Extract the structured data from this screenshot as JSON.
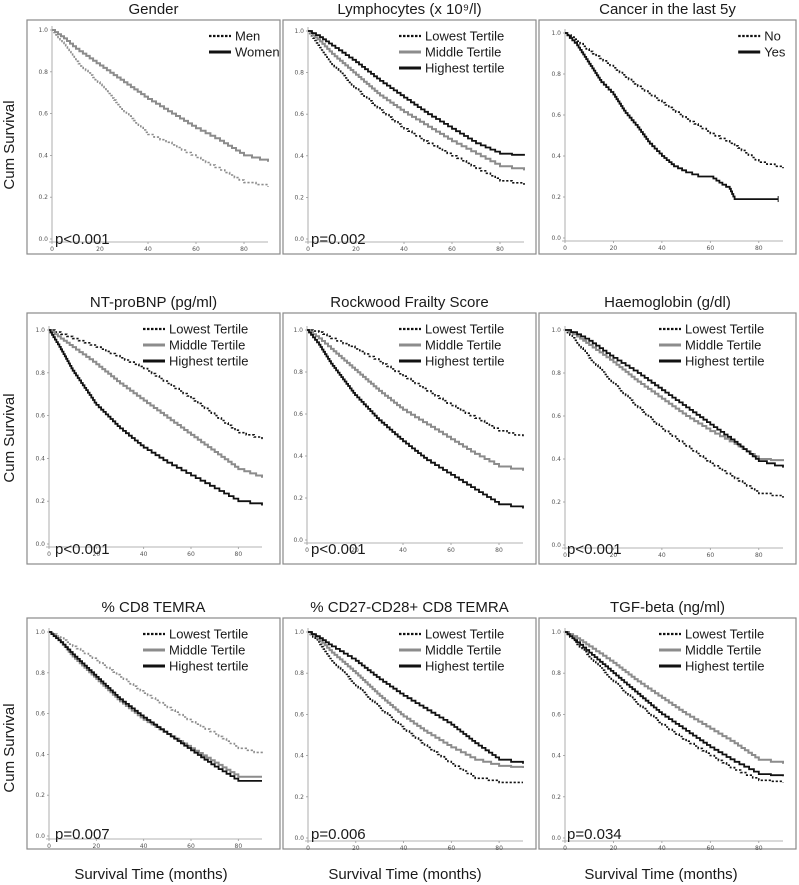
{
  "figure": {
    "y_axis_label": "Cum Survival",
    "x_axis_label": "Survival Time (months)"
  },
  "colors": {
    "black": "#111111",
    "gray": "#8c8c8c",
    "frame": "#8a8a8a"
  },
  "chart_data": [
    {
      "type": "line",
      "title": "Gender",
      "p_value": "p<0.001",
      "legend_position": "top-right",
      "xlabel": "Survival Time (months)",
      "ylabel": "Cum Survival",
      "xlim": [
        0,
        90
      ],
      "ylim": [
        0,
        1
      ],
      "x_ticks": [
        "0",
        "20",
        "40",
        "60",
        "80"
      ],
      "y_ticks": [
        "0.0",
        "0.2",
        "0.4",
        "0.6",
        "0.8",
        "1.0"
      ],
      "series": [
        {
          "name": "Men",
          "style": "dotted-gray",
          "legend_style": "dotted-black",
          "x": [
            0,
            5,
            10,
            20,
            30,
            40,
            50,
            60,
            70,
            80,
            90
          ],
          "y": [
            1.0,
            0.93,
            0.85,
            0.74,
            0.61,
            0.5,
            0.45,
            0.39,
            0.33,
            0.27,
            0.25
          ]
        },
        {
          "name": "Women",
          "style": "solid-gray",
          "legend_style": "solid-black",
          "x": [
            0,
            5,
            10,
            20,
            30,
            40,
            50,
            60,
            70,
            80,
            90
          ],
          "y": [
            1.0,
            0.96,
            0.91,
            0.83,
            0.75,
            0.67,
            0.6,
            0.53,
            0.47,
            0.4,
            0.37
          ]
        }
      ]
    },
    {
      "type": "line",
      "title": "Lymphocytes (x 10⁹/l)",
      "p_value": "p=0.002",
      "legend_position": "top-right",
      "xlabel": "Survival Time (months)",
      "ylabel": "Cum Survival",
      "xlim": [
        0,
        90
      ],
      "ylim": [
        0,
        1
      ],
      "x_ticks": [
        "0",
        "20",
        "40",
        "60",
        "80"
      ],
      "y_ticks": [
        "0.0",
        "0.2",
        "0.4",
        "0.6",
        "0.8",
        "1.0"
      ],
      "series": [
        {
          "name": "Lowest Tertile",
          "style": "dotted-black",
          "legend_style": "dotted-black",
          "x": [
            0,
            5,
            10,
            20,
            30,
            40,
            50,
            60,
            70,
            80,
            90
          ],
          "y": [
            1.0,
            0.92,
            0.84,
            0.72,
            0.62,
            0.53,
            0.46,
            0.4,
            0.34,
            0.28,
            0.26
          ]
        },
        {
          "name": "Middle Tertile",
          "style": "solid-gray",
          "legend_style": "solid-gray",
          "x": [
            0,
            5,
            10,
            20,
            30,
            40,
            50,
            60,
            70,
            80,
            90
          ],
          "y": [
            1.0,
            0.95,
            0.89,
            0.79,
            0.69,
            0.61,
            0.54,
            0.47,
            0.41,
            0.35,
            0.33
          ]
        },
        {
          "name": "Highest tertile",
          "style": "solid-black",
          "legend_style": "solid-black",
          "x": [
            0,
            5,
            10,
            20,
            30,
            40,
            50,
            60,
            70,
            80,
            90
          ],
          "y": [
            1.0,
            0.97,
            0.93,
            0.85,
            0.76,
            0.68,
            0.6,
            0.53,
            0.46,
            0.41,
            0.4
          ]
        }
      ]
    },
    {
      "type": "line",
      "title": "Cancer in the last 5y",
      "p_value": "",
      "legend_position": "top-right",
      "xlabel": "Survival Time (months)",
      "ylabel": "Cum Survival",
      "xlim": [
        0,
        90
      ],
      "ylim": [
        0,
        1
      ],
      "x_ticks": [
        "0",
        "20",
        "40",
        "60",
        "80"
      ],
      "y_ticks": [
        "0.0",
        "0.2",
        "0.4",
        "0.6",
        "0.8",
        "1.0"
      ],
      "series": [
        {
          "name": "No",
          "style": "dotted-black",
          "legend_style": "dotted-black",
          "x": [
            0,
            5,
            10,
            20,
            30,
            40,
            50,
            60,
            70,
            80,
            90
          ],
          "y": [
            1.0,
            0.96,
            0.91,
            0.83,
            0.74,
            0.66,
            0.58,
            0.51,
            0.45,
            0.37,
            0.34
          ]
        },
        {
          "name": "Yes",
          "style": "solid-black",
          "legend_style": "solid-black",
          "x": [
            0,
            5,
            10,
            15,
            20,
            25,
            30,
            35,
            40,
            45,
            50,
            55,
            60,
            65,
            68,
            70,
            80,
            88
          ],
          "y": [
            1.0,
            0.94,
            0.85,
            0.76,
            0.7,
            0.61,
            0.54,
            0.46,
            0.4,
            0.35,
            0.32,
            0.3,
            0.3,
            0.26,
            0.24,
            0.19,
            0.19,
            0.19
          ]
        }
      ]
    },
    {
      "type": "line",
      "title": "NT-proBNP (pg/ml)",
      "p_value": "p<0.001",
      "legend_position": "top-right",
      "xlabel": "Survival Time (months)",
      "ylabel": "Cum Survival",
      "xlim": [
        0,
        90
      ],
      "ylim": [
        0,
        1
      ],
      "x_ticks": [
        "0",
        "20",
        "40",
        "60",
        "80"
      ],
      "y_ticks": [
        "0.0",
        "0.2",
        "0.4",
        "0.6",
        "0.8",
        "1.0"
      ],
      "series": [
        {
          "name": "Lowest Tertile",
          "style": "dotted-black",
          "legend_style": "dotted-black",
          "x": [
            0,
            5,
            10,
            20,
            30,
            40,
            50,
            60,
            70,
            80,
            90
          ],
          "y": [
            1.0,
            0.98,
            0.96,
            0.92,
            0.87,
            0.82,
            0.75,
            0.68,
            0.6,
            0.52,
            0.49
          ]
        },
        {
          "name": "Middle Tertile",
          "style": "solid-gray",
          "legend_style": "solid-gray",
          "x": [
            0,
            5,
            10,
            20,
            30,
            40,
            50,
            60,
            70,
            80,
            90
          ],
          "y": [
            1.0,
            0.96,
            0.92,
            0.84,
            0.75,
            0.67,
            0.59,
            0.51,
            0.43,
            0.35,
            0.31
          ]
        },
        {
          "name": "Highest tertile",
          "style": "solid-black",
          "legend_style": "solid-black",
          "x": [
            0,
            5,
            10,
            20,
            30,
            40,
            50,
            60,
            70,
            80,
            90
          ],
          "y": [
            1.0,
            0.91,
            0.81,
            0.65,
            0.54,
            0.45,
            0.38,
            0.32,
            0.26,
            0.2,
            0.18
          ]
        }
      ]
    },
    {
      "type": "line",
      "title": "Rockwood Frailty Score",
      "p_value": "p<0.001",
      "legend_position": "top-right",
      "xlabel": "Survival Time (months)",
      "ylabel": "Cum Survival",
      "xlim": [
        0,
        90
      ],
      "ylim": [
        0,
        1
      ],
      "x_ticks": [
        "0",
        "20",
        "40",
        "60",
        "80"
      ],
      "y_ticks": [
        "0.0",
        "0.2",
        "0.4",
        "0.6",
        "0.8",
        "1.0"
      ],
      "series": [
        {
          "name": "Lowest Tertile",
          "style": "dotted-black",
          "legend_style": "dotted-black",
          "x": [
            0,
            5,
            10,
            20,
            30,
            40,
            50,
            60,
            70,
            80,
            90
          ],
          "y": [
            1.0,
            0.99,
            0.96,
            0.91,
            0.85,
            0.78,
            0.71,
            0.64,
            0.58,
            0.52,
            0.49
          ]
        },
        {
          "name": "Middle Tertile",
          "style": "solid-gray",
          "legend_style": "solid-gray",
          "x": [
            0,
            5,
            10,
            20,
            30,
            40,
            50,
            60,
            70,
            80,
            90
          ],
          "y": [
            1.0,
            0.96,
            0.91,
            0.81,
            0.71,
            0.62,
            0.55,
            0.48,
            0.41,
            0.35,
            0.33
          ]
        },
        {
          "name": "Highest tertile",
          "style": "solid-black",
          "legend_style": "solid-black",
          "x": [
            0,
            5,
            10,
            20,
            30,
            40,
            50,
            60,
            70,
            80,
            90
          ],
          "y": [
            1.0,
            0.93,
            0.84,
            0.69,
            0.57,
            0.47,
            0.38,
            0.31,
            0.24,
            0.17,
            0.15
          ]
        }
      ]
    },
    {
      "type": "line",
      "title": "Haemoglobin (g/dl)",
      "p_value": "p<0.001",
      "legend_position": "top-right",
      "xlabel": "Survival Time (months)",
      "ylabel": "Cum Survival",
      "xlim": [
        0,
        90
      ],
      "ylim": [
        0,
        1
      ],
      "x_ticks": [
        "0",
        "20",
        "40",
        "60",
        "80"
      ],
      "y_ticks": [
        "0.0",
        "0.2",
        "0.4",
        "0.6",
        "0.8",
        "1.0"
      ],
      "series": [
        {
          "name": "Lowest Tertile",
          "style": "dotted-black",
          "legend_style": "dotted-black",
          "x": [
            0,
            5,
            10,
            20,
            30,
            40,
            50,
            60,
            70,
            80,
            90
          ],
          "y": [
            1.0,
            0.94,
            0.87,
            0.75,
            0.64,
            0.54,
            0.46,
            0.38,
            0.31,
            0.24,
            0.22
          ]
        },
        {
          "name": "Middle Tertile",
          "style": "solid-gray",
          "legend_style": "solid-gray",
          "x": [
            0,
            5,
            10,
            20,
            30,
            40,
            50,
            60,
            70,
            80,
            90
          ],
          "y": [
            1.0,
            0.97,
            0.93,
            0.85,
            0.76,
            0.68,
            0.6,
            0.53,
            0.47,
            0.4,
            0.39
          ]
        },
        {
          "name": "Highest tertile",
          "style": "solid-black",
          "legend_style": "solid-black",
          "x": [
            0,
            5,
            10,
            20,
            30,
            40,
            50,
            60,
            70,
            80,
            90
          ],
          "y": [
            1.0,
            0.98,
            0.95,
            0.87,
            0.8,
            0.72,
            0.64,
            0.56,
            0.48,
            0.39,
            0.36
          ]
        }
      ]
    },
    {
      "type": "line",
      "title": "% CD8 TEMRA",
      "p_value": "p=0.007",
      "legend_position": "top-right",
      "xlabel": "Survival Time (months)",
      "ylabel": "Cum Survival",
      "xlim": [
        0,
        90
      ],
      "ylim": [
        0,
        1
      ],
      "x_ticks": [
        "0",
        "20",
        "40",
        "60",
        "80"
      ],
      "y_ticks": [
        "0.0",
        "0.2",
        "0.4",
        "0.6",
        "0.8",
        "1.0"
      ],
      "series": [
        {
          "name": "Lowest Tertile",
          "style": "dotted-gray",
          "legend_style": "dotted-black",
          "x": [
            0,
            5,
            10,
            20,
            30,
            40,
            50,
            60,
            70,
            80,
            90
          ],
          "y": [
            1.0,
            0.97,
            0.93,
            0.86,
            0.78,
            0.7,
            0.63,
            0.56,
            0.5,
            0.43,
            0.4
          ]
        },
        {
          "name": "Middle Tertile",
          "style": "solid-gray",
          "legend_style": "solid-gray",
          "x": [
            0,
            5,
            10,
            20,
            30,
            40,
            50,
            60,
            70,
            80,
            90
          ],
          "y": [
            1.0,
            0.95,
            0.88,
            0.77,
            0.66,
            0.57,
            0.5,
            0.43,
            0.36,
            0.29,
            0.29
          ]
        },
        {
          "name": "Highest tertile",
          "style": "solid-black",
          "legend_style": "solid-black",
          "x": [
            0,
            5,
            10,
            20,
            30,
            40,
            50,
            60,
            70,
            80,
            90
          ],
          "y": [
            1.0,
            0.95,
            0.89,
            0.78,
            0.67,
            0.58,
            0.5,
            0.42,
            0.34,
            0.27,
            0.27
          ]
        }
      ]
    },
    {
      "type": "line",
      "title": "% CD27-CD28+ CD8 TEMRA",
      "p_value": "p=0.006",
      "legend_position": "top-right",
      "xlabel": "Survival Time (months)",
      "ylabel": "Cum Survival",
      "xlim": [
        0,
        90
      ],
      "ylim": [
        0,
        1
      ],
      "x_ticks": [
        "0",
        "20",
        "40",
        "60",
        "80"
      ],
      "y_ticks": [
        "0.0",
        "0.2",
        "0.4",
        "0.6",
        "0.8",
        "1.0"
      ],
      "series": [
        {
          "name": "Lowest Tertile",
          "style": "dotted-black",
          "legend_style": "dotted-black",
          "x": [
            0,
            5,
            10,
            20,
            30,
            40,
            50,
            60,
            70,
            80,
            90
          ],
          "y": [
            1.0,
            0.94,
            0.86,
            0.74,
            0.63,
            0.53,
            0.44,
            0.36,
            0.29,
            0.27,
            0.27
          ]
        },
        {
          "name": "Middle Tertile",
          "style": "solid-gray",
          "legend_style": "solid-gray",
          "x": [
            0,
            5,
            10,
            20,
            30,
            40,
            50,
            60,
            70,
            80,
            90
          ],
          "y": [
            1.0,
            0.96,
            0.9,
            0.8,
            0.69,
            0.59,
            0.51,
            0.44,
            0.38,
            0.35,
            0.34
          ]
        },
        {
          "name": "Highest tertile",
          "style": "solid-black",
          "legend_style": "solid-black",
          "x": [
            0,
            5,
            10,
            20,
            30,
            40,
            50,
            60,
            70,
            80,
            90
          ],
          "y": [
            1.0,
            0.97,
            0.93,
            0.86,
            0.77,
            0.69,
            0.62,
            0.55,
            0.46,
            0.38,
            0.36
          ]
        }
      ]
    },
    {
      "type": "line",
      "title": "TGF-beta (ng/ml)",
      "p_value": "p=0.034",
      "legend_position": "top-right",
      "xlabel": "Survival Time (months)",
      "ylabel": "Cum Survival",
      "xlim": [
        0,
        90
      ],
      "ylim": [
        0,
        1
      ],
      "x_ticks": [
        "0",
        "20",
        "40",
        "60",
        "80"
      ],
      "y_ticks": [
        "0.0",
        "0.2",
        "0.4",
        "0.6",
        "0.8",
        "1.0"
      ],
      "series": [
        {
          "name": "Lowest Tertile",
          "style": "dotted-black",
          "legend_style": "dotted-black",
          "x": [
            0,
            5,
            10,
            20,
            30,
            40,
            50,
            60,
            70,
            80,
            90
          ],
          "y": [
            1.0,
            0.94,
            0.88,
            0.76,
            0.65,
            0.55,
            0.47,
            0.4,
            0.33,
            0.28,
            0.27
          ]
        },
        {
          "name": "Middle Tertile",
          "style": "solid-gray",
          "legend_style": "solid-gray",
          "x": [
            0,
            5,
            10,
            20,
            30,
            40,
            50,
            60,
            70,
            80,
            90
          ],
          "y": [
            1.0,
            0.97,
            0.93,
            0.85,
            0.76,
            0.68,
            0.6,
            0.53,
            0.46,
            0.38,
            0.36
          ]
        },
        {
          "name": "Highest tertile",
          "style": "solid-black",
          "legend_style": "solid-black",
          "x": [
            0,
            5,
            10,
            20,
            30,
            40,
            50,
            60,
            70,
            80,
            90
          ],
          "y": [
            1.0,
            0.95,
            0.9,
            0.8,
            0.7,
            0.6,
            0.52,
            0.44,
            0.37,
            0.31,
            0.3
          ]
        }
      ]
    }
  ]
}
